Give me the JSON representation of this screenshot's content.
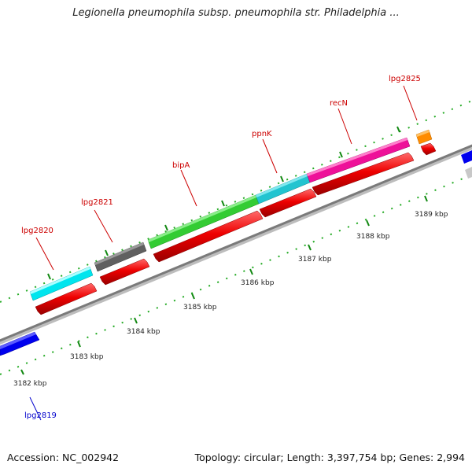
{
  "title": "Legionella pneumophila subsp. pneumophila str. Philadelphia ...",
  "footer": {
    "accession": "Accession: NC_002942",
    "summary": "Topology: circular; Length: 3,397,754 bp; Genes: 2,994"
  },
  "scale_labels": [
    "3182 kbp",
    "3183 kbp",
    "3184 kbp",
    "3185 kbp",
    "3186 kbp",
    "3187 kbp",
    "3188 kbp",
    "3189 kbp"
  ],
  "gene_labels": [
    "lpg2819",
    "lpg2820",
    "lpg2821",
    "bipA",
    "ppnK",
    "recN",
    "lpg2825"
  ],
  "colors": {
    "backbone": "#808080",
    "cds": "#ee0000",
    "forward_label": "#cc0000",
    "reverse_label": "#0000cc",
    "lpg2819": "#0000ee",
    "lpg2820": "#00e5ee",
    "lpg2821": "#606060",
    "bipA": "#33cc33",
    "ppnK": "#22c4d0",
    "recN": "#ee1199",
    "lpg2825": "#ff8c00",
    "tick": "#228822"
  }
}
